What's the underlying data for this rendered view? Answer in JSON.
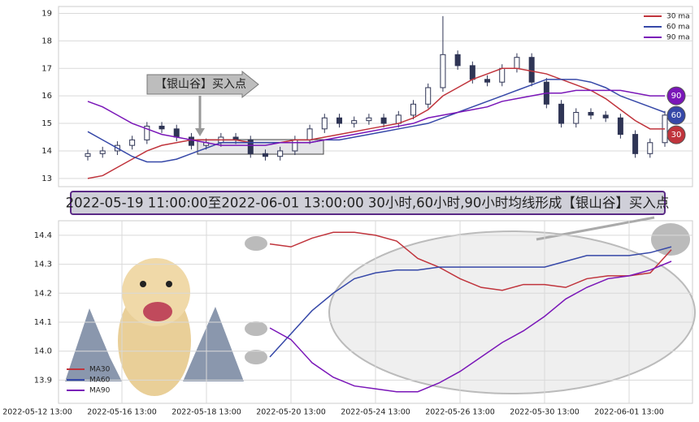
{
  "banner": "2022-05-19 11:00:00至2022-06-01 13:00:00 30小时,60小时,90小时均线形成【银山谷】买入点",
  "chart_data": [
    {
      "type": "candlestick",
      "ylim": [
        12.7,
        19.25
      ],
      "yticks": [
        13,
        14,
        15,
        16,
        17,
        18,
        19
      ],
      "grid": true,
      "legend": "upper right",
      "annotation": "【银山谷】买入点",
      "candles": {
        "color": "#2f3555",
        "open": [
          13.8,
          13.9,
          14.0,
          14.2,
          14.4,
          14.9,
          14.8,
          14.5,
          14.2,
          14.3,
          14.5,
          14.4,
          13.9,
          13.8,
          14.0,
          14.4,
          14.8,
          15.2,
          15.0,
          15.1,
          15.2,
          15.0,
          15.3,
          15.7,
          16.3,
          17.5,
          17.1,
          16.6,
          16.5,
          17.0,
          17.4,
          16.5,
          15.7,
          15.0,
          15.4,
          15.3,
          15.2,
          14.6,
          13.9,
          14.3
        ],
        "high": [
          14.05,
          14.15,
          14.35,
          14.55,
          15.05,
          15.05,
          14.95,
          14.65,
          14.45,
          14.65,
          14.65,
          14.55,
          14.05,
          14.15,
          14.55,
          14.95,
          15.35,
          15.35,
          15.25,
          15.35,
          15.35,
          15.45,
          15.85,
          16.45,
          18.9,
          17.65,
          17.25,
          16.75,
          17.15,
          17.55,
          17.55,
          16.65,
          15.85,
          15.55,
          15.55,
          15.45,
          15.35,
          14.75,
          14.45,
          15.45
        ],
        "low": [
          13.65,
          13.75,
          13.85,
          14.05,
          14.25,
          14.65,
          14.35,
          14.05,
          14.05,
          14.15,
          14.25,
          13.75,
          13.65,
          13.65,
          13.85,
          14.25,
          14.65,
          14.85,
          14.85,
          14.95,
          14.85,
          14.85,
          15.15,
          15.55,
          16.15,
          16.95,
          16.45,
          16.35,
          16.35,
          16.85,
          16.35,
          15.55,
          14.85,
          14.85,
          15.15,
          15.05,
          14.45,
          13.75,
          13.75,
          14.15
        ],
        "close": [
          13.9,
          14.0,
          14.2,
          14.4,
          14.9,
          14.8,
          14.5,
          14.2,
          14.3,
          14.5,
          14.4,
          13.9,
          13.8,
          14.0,
          14.4,
          14.8,
          15.2,
          15.0,
          15.1,
          15.2,
          15.0,
          15.3,
          15.7,
          16.3,
          17.5,
          17.1,
          16.6,
          16.5,
          17.0,
          17.4,
          16.5,
          15.7,
          15.0,
          15.4,
          15.3,
          15.2,
          14.6,
          13.9,
          14.3,
          15.3
        ]
      },
      "series": [
        {
          "name": "30 ma",
          "label": "30",
          "color": "#c0343c",
          "values": [
            13.0,
            13.1,
            13.4,
            13.7,
            14.0,
            14.2,
            14.3,
            14.4,
            14.4,
            14.4,
            14.4,
            14.3,
            14.3,
            14.3,
            14.4,
            14.4,
            14.5,
            14.6,
            14.7,
            14.8,
            14.9,
            15.0,
            15.2,
            15.5,
            16.0,
            16.3,
            16.6,
            16.8,
            17.0,
            17.0,
            16.9,
            16.8,
            16.6,
            16.4,
            16.2,
            15.9,
            15.5,
            15.1,
            14.8,
            14.8
          ]
        },
        {
          "name": "60 ma",
          "label": "60",
          "color": "#3648a8",
          "values": [
            14.7,
            14.4,
            14.1,
            13.8,
            13.6,
            13.6,
            13.7,
            13.9,
            14.1,
            14.3,
            14.3,
            14.3,
            14.3,
            14.3,
            14.3,
            14.3,
            14.4,
            14.4,
            14.5,
            14.6,
            14.7,
            14.8,
            14.9,
            15.0,
            15.2,
            15.4,
            15.6,
            15.8,
            16.0,
            16.2,
            16.4,
            16.6,
            16.6,
            16.6,
            16.5,
            16.3,
            16.0,
            15.8,
            15.6,
            15.4
          ]
        },
        {
          "name": "90 ma",
          "label": "90",
          "color": "#7a16b8",
          "values": [
            15.8,
            15.6,
            15.3,
            15.0,
            14.8,
            14.6,
            14.5,
            14.4,
            14.3,
            14.2,
            14.2,
            14.2,
            14.2,
            14.3,
            14.3,
            14.3,
            14.4,
            14.5,
            14.6,
            14.7,
            14.8,
            14.9,
            15.0,
            15.2,
            15.3,
            15.4,
            15.5,
            15.6,
            15.8,
            15.9,
            16.0,
            16.1,
            16.1,
            16.2,
            16.2,
            16.2,
            16.2,
            16.1,
            16.0,
            16.0
          ]
        }
      ]
    },
    {
      "type": "line",
      "ylim": [
        13.82,
        14.45
      ],
      "yticks": [
        13.9,
        {
          "value": 14,
          "label": "14.0"
        },
        14.1,
        14.2,
        14.3,
        14.4
      ],
      "xlim": [
        0.25,
        7.75
      ],
      "grid": true,
      "legend": "lower left",
      "xticks": [
        {
          "value": 0,
          "label": "2022-05-12 13:00"
        },
        {
          "value": 1,
          "label": "2022-05-16 13:00"
        },
        {
          "value": 2,
          "label": "2022-05-18 13:00"
        },
        {
          "value": 3,
          "label": "2022-05-20 13:00"
        },
        {
          "value": 4,
          "label": "2022-05-24 13:00"
        },
        {
          "value": 5,
          "label": "2022-05-26 13:00"
        },
        {
          "value": 6,
          "label": "2022-05-30 13:00"
        },
        {
          "value": 7,
          "label": "2022-06-01 13:00"
        }
      ],
      "x": [
        2.75,
        3.0,
        3.25,
        3.5,
        3.75,
        4.0,
        4.25,
        4.5,
        4.75,
        5.0,
        5.25,
        5.5,
        5.75,
        6.0,
        6.25,
        6.5,
        6.75,
        7.0,
        7.25,
        7.5
      ],
      "series": [
        {
          "name": "MA30",
          "color": "#c0343c",
          "values": [
            14.37,
            14.36,
            14.39,
            14.41,
            14.41,
            14.4,
            14.38,
            14.32,
            14.29,
            14.25,
            14.22,
            14.21,
            14.23,
            14.23,
            14.22,
            14.25,
            14.26,
            14.26,
            14.27,
            14.35
          ]
        },
        {
          "name": "MA60",
          "color": "#3648a8",
          "values": [
            13.98,
            14.06,
            14.14,
            14.2,
            14.25,
            14.27,
            14.28,
            14.28,
            14.29,
            14.29,
            14.29,
            14.29,
            14.29,
            14.29,
            14.31,
            14.33,
            14.33,
            14.33,
            14.34,
            14.36
          ]
        },
        {
          "name": "MA90",
          "color": "#7a16b8",
          "values": [
            14.08,
            14.04,
            13.96,
            13.91,
            13.88,
            13.87,
            13.86,
            13.86,
            13.89,
            13.93,
            13.98,
            14.03,
            14.07,
            14.12,
            14.18,
            14.22,
            14.25,
            14.26,
            14.28,
            14.31
          ]
        }
      ]
    }
  ]
}
